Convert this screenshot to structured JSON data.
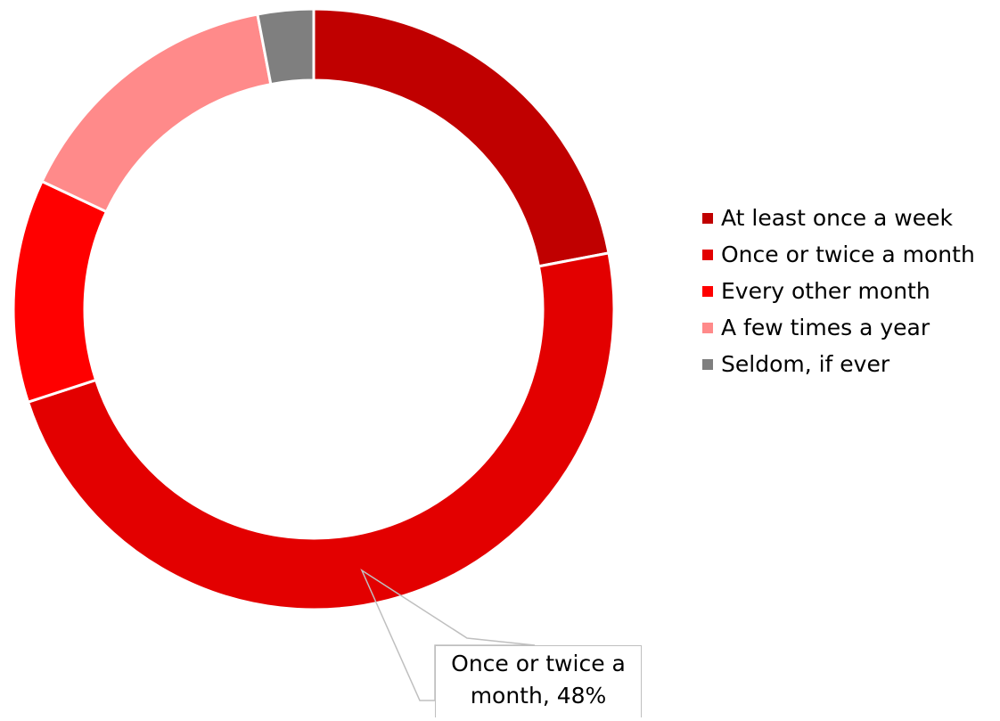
{
  "chart_data": {
    "type": "pie",
    "style": "donut",
    "categories": [
      "At least once a week",
      "Once or twice a month",
      "Every other month",
      "A few times a year",
      "Seldom, if ever"
    ],
    "values": [
      22,
      48,
      12,
      15,
      3
    ],
    "unit": "%",
    "colors": [
      "#c00000",
      "#e30000",
      "#ff0000",
      "#ff8a8a",
      "#7f7f7f"
    ],
    "legend_position": "right",
    "data_labels": [
      {
        "category": "Once or twice a month",
        "line1": "Once or twice a",
        "line2": "month, 48%"
      }
    ]
  }
}
